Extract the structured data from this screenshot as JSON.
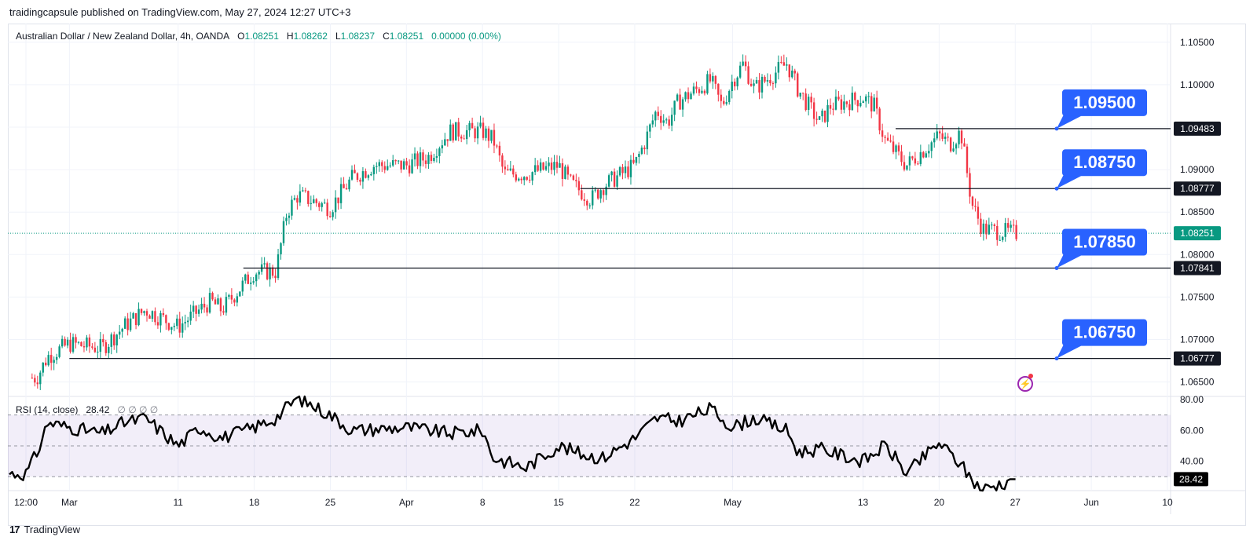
{
  "caption": "traidingcapsule published on TradingView.com, May 27, 2024 12:27 UTC+3",
  "footer": {
    "brand": "TradingView",
    "logo": "17"
  },
  "legend": {
    "symbol": "Australian Dollar / New Zealand Dollar, 4h, OANDA",
    "o_label": "O",
    "o": "1.08251",
    "h_label": "H",
    "h": "1.08262",
    "l_label": "L",
    "l": "1.08237",
    "c_label": "C",
    "c": "1.08251",
    "change": "0.00000 (0.00%)"
  },
  "rsi_legend": {
    "label": "RSI (14, close)",
    "value": "28.42",
    "extras": "∅ ∅ ∅ ∅"
  },
  "icons": {
    "alert": "lightning-bolt-icon"
  },
  "colors": {
    "up": "#089981",
    "down": "#f23645",
    "label_blue": "#2962ff",
    "dark_label": "#131722",
    "rsi_band": "#7e57c2",
    "rsi_line": "#000000",
    "current_price": "#089981"
  },
  "chart_data": [
    {
      "type": "candlestick",
      "title": "",
      "y_ticks": [
        "1.10500",
        "1.10000",
        "1.09500",
        "1.09000",
        "1.08500",
        "1.08000",
        "1.07500",
        "1.07000",
        "1.06500"
      ],
      "y_tick_values": [
        1.105,
        1.1,
        1.095,
        1.09,
        1.085,
        1.08,
        1.075,
        1.07,
        1.065
      ],
      "ylim": [
        1.0633,
        1.1072
      ],
      "x_ticks": [
        "12:00",
        "Mar",
        "11",
        "18",
        "25",
        "Apr",
        "8",
        "15",
        "22",
        "May",
        "13",
        "20",
        "27",
        "Jun",
        "10"
      ],
      "x_tick_dates": [
        "2024-02-26",
        "2024-03-01",
        "2024-03-11",
        "2024-03-18",
        "2024-03-25",
        "2024-04-01",
        "2024-04-08",
        "2024-04-15",
        "2024-04-22",
        "2024-05-01",
        "2024-05-13",
        "2024-05-20",
        "2024-05-27",
        "2024-06-03",
        "2024-06-10"
      ],
      "price_path_dates": [
        "2024-02-27",
        "2024-02-28",
        "2024-03-01",
        "2024-03-04",
        "2024-03-06",
        "2024-03-08",
        "2024-03-11",
        "2024-03-12",
        "2024-03-14",
        "2024-03-15",
        "2024-03-18",
        "2024-03-20",
        "2024-03-21",
        "2024-03-22",
        "2024-03-25",
        "2024-03-27",
        "2024-03-29",
        "2024-04-01",
        "2024-04-03",
        "2024-04-05",
        "2024-04-08",
        "2024-04-09",
        "2024-04-10",
        "2024-04-12",
        "2024-04-15",
        "2024-04-16",
        "2024-04-17",
        "2024-04-18",
        "2024-04-19",
        "2024-04-22",
        "2024-04-23",
        "2024-04-24",
        "2024-04-25",
        "2024-04-26",
        "2024-04-29",
        "2024-04-30",
        "2024-05-01",
        "2024-05-02",
        "2024-05-03",
        "2024-05-06",
        "2024-05-07",
        "2024-05-08",
        "2024-05-09",
        "2024-05-10",
        "2024-05-13",
        "2024-05-14",
        "2024-05-15",
        "2024-05-16",
        "2024-05-17",
        "2024-05-20",
        "2024-05-21",
        "2024-05-22",
        "2024-05-23",
        "2024-05-24",
        "2024-05-27"
      ],
      "price_path_values": [
        1.0655,
        1.068,
        1.0695,
        1.069,
        1.0715,
        1.0735,
        1.0715,
        1.0725,
        1.0745,
        1.0735,
        1.078,
        1.078,
        1.085,
        1.087,
        1.0855,
        1.089,
        1.0905,
        1.0905,
        1.0915,
        1.0945,
        1.0945,
        1.0935,
        1.0895,
        1.0895,
        1.0905,
        1.0885,
        1.0875,
        1.0865,
        1.088,
        1.0905,
        1.0935,
        1.097,
        1.0955,
        1.098,
        1.1005,
        1.0975,
        1.1005,
        1.1025,
        1.0995,
        1.1025,
        1.0995,
        1.0975,
        1.0955,
        1.0975,
        1.0985,
        1.0975,
        1.0935,
        1.092,
        1.0905,
        1.094,
        1.093,
        1.0945,
        1.086,
        1.083,
        1.0825
      ],
      "levels": [
        {
          "label": "1.09500",
          "line_value": 1.09483,
          "axis_label": "1.09483"
        },
        {
          "label": "1.08750",
          "line_value": 1.08777,
          "axis_label": "1.08777"
        },
        {
          "label": "1.07850",
          "line_value": 1.07841,
          "axis_label": "1.07841"
        },
        {
          "label": "1.06750",
          "line_value": 1.06777,
          "axis_label": "1.06777"
        }
      ],
      "current_price": {
        "value": 1.08251,
        "label": "1.08251"
      }
    },
    {
      "type": "line",
      "title": "",
      "y_ticks": [
        "80.00",
        "60.00",
        "40.00"
      ],
      "y_tick_values": [
        80,
        60,
        40
      ],
      "ylim": [
        21,
        82
      ],
      "band": [
        30,
        70
      ],
      "midline": 50,
      "current": {
        "value": 28.42,
        "label": "28.42"
      },
      "path_dates": [
        "2024-02-26",
        "2024-02-27",
        "2024-02-28",
        "2024-03-01",
        "2024-03-04",
        "2024-03-06",
        "2024-03-08",
        "2024-03-11",
        "2024-03-13",
        "2024-03-15",
        "2024-03-18",
        "2024-03-20",
        "2024-03-21",
        "2024-03-22",
        "2024-03-25",
        "2024-03-27",
        "2024-04-01",
        "2024-04-03",
        "2024-04-05",
        "2024-04-08",
        "2024-04-09",
        "2024-04-12",
        "2024-04-15",
        "2024-04-17",
        "2024-04-19",
        "2024-04-22",
        "2024-04-24",
        "2024-04-26",
        "2024-04-29",
        "2024-05-01",
        "2024-05-03",
        "2024-05-06",
        "2024-05-07",
        "2024-05-09",
        "2024-05-13",
        "2024-05-15",
        "2024-05-16",
        "2024-05-17",
        "2024-05-20",
        "2024-05-22",
        "2024-05-23",
        "2024-05-24",
        "2024-05-27"
      ],
      "path_values": [
        32,
        45,
        65,
        62,
        58,
        65,
        68,
        50,
        62,
        55,
        62,
        68,
        75,
        81,
        70,
        60,
        62,
        60,
        58,
        60,
        42,
        36,
        50,
        45,
        42,
        55,
        68,
        66,
        74,
        62,
        68,
        60,
        46,
        48,
        40,
        50,
        42,
        32,
        52,
        38,
        28,
        22,
        28.42
      ]
    }
  ]
}
